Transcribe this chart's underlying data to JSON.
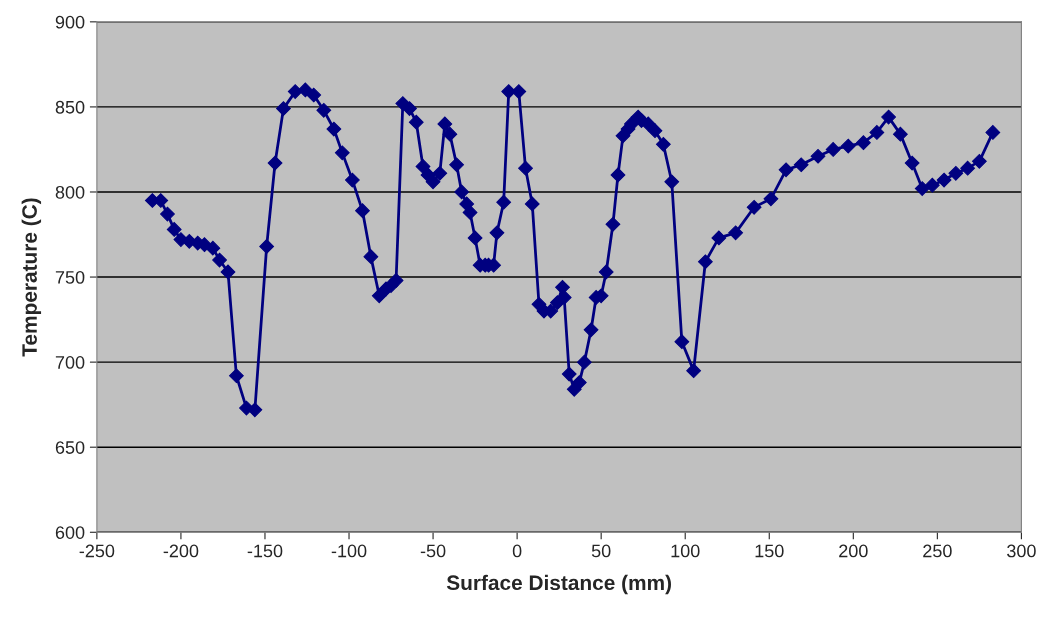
{
  "chart_data": {
    "type": "line",
    "xlabel": "Surface Distance (mm)",
    "ylabel": "Temperature (C)",
    "xlim": [
      -250,
      300
    ],
    "xticks": [
      -250,
      -200,
      -150,
      -100,
      -50,
      0,
      50,
      100,
      150,
      200,
      250,
      300
    ],
    "ylim": [
      600,
      900
    ],
    "yticks": [
      600,
      650,
      700,
      750,
      800,
      850,
      900
    ],
    "grid": "y",
    "legend": false,
    "marker": "diamond",
    "line_style": "solid",
    "series": [
      {
        "color": "#000080",
        "x": [
          -217,
          -212,
          -208,
          -204,
          -200,
          -195,
          -190,
          -186,
          -181,
          -177,
          -172,
          -167,
          -161,
          -156,
          -149,
          -144,
          -139,
          -132,
          -126,
          -121,
          -115,
          -109,
          -104,
          -98,
          -92,
          -87,
          -82,
          -78,
          -75,
          -72,
          -68,
          -64,
          -60,
          -56,
          -53,
          -50,
          -46,
          -43,
          -40,
          -36,
          -33,
          -30,
          -28,
          -25,
          -22,
          -19,
          -17,
          -14,
          -12,
          -8,
          -5,
          1,
          5,
          9,
          13,
          16,
          20,
          24,
          27,
          28,
          31,
          34,
          37,
          40,
          44,
          47,
          50,
          53,
          57,
          60,
          63,
          66,
          68,
          72,
          74,
          78,
          82,
          87,
          92,
          98,
          105,
          112,
          120,
          130,
          141,
          151,
          160,
          169,
          179,
          188,
          197,
          206,
          214,
          221,
          228,
          235,
          241,
          247,
          254,
          261,
          268,
          275,
          283
        ],
        "values": [
          795,
          795,
          787,
          778,
          772,
          771,
          770,
          769,
          767,
          760,
          753,
          692,
          673,
          672,
          768,
          817,
          849,
          859,
          860,
          857,
          848,
          837,
          823,
          807,
          789,
          762,
          739,
          743,
          745,
          748,
          852,
          849,
          841,
          815,
          810,
          806,
          811,
          840,
          834,
          816,
          800,
          793,
          788,
          773,
          757,
          757,
          757,
          757,
          776,
          794,
          859,
          859,
          814,
          793,
          734,
          730,
          730,
          735,
          744,
          738,
          693,
          684,
          688,
          700,
          719,
          738,
          739,
          753,
          781,
          810,
          833,
          837,
          840,
          844,
          842,
          840,
          836,
          828,
          806,
          712,
          695,
          759,
          773,
          776,
          791,
          796,
          813,
          816,
          821,
          825,
          827,
          829,
          835,
          844,
          834,
          817,
          802,
          804,
          807,
          811,
          814,
          818,
          835
        ]
      }
    ]
  }
}
